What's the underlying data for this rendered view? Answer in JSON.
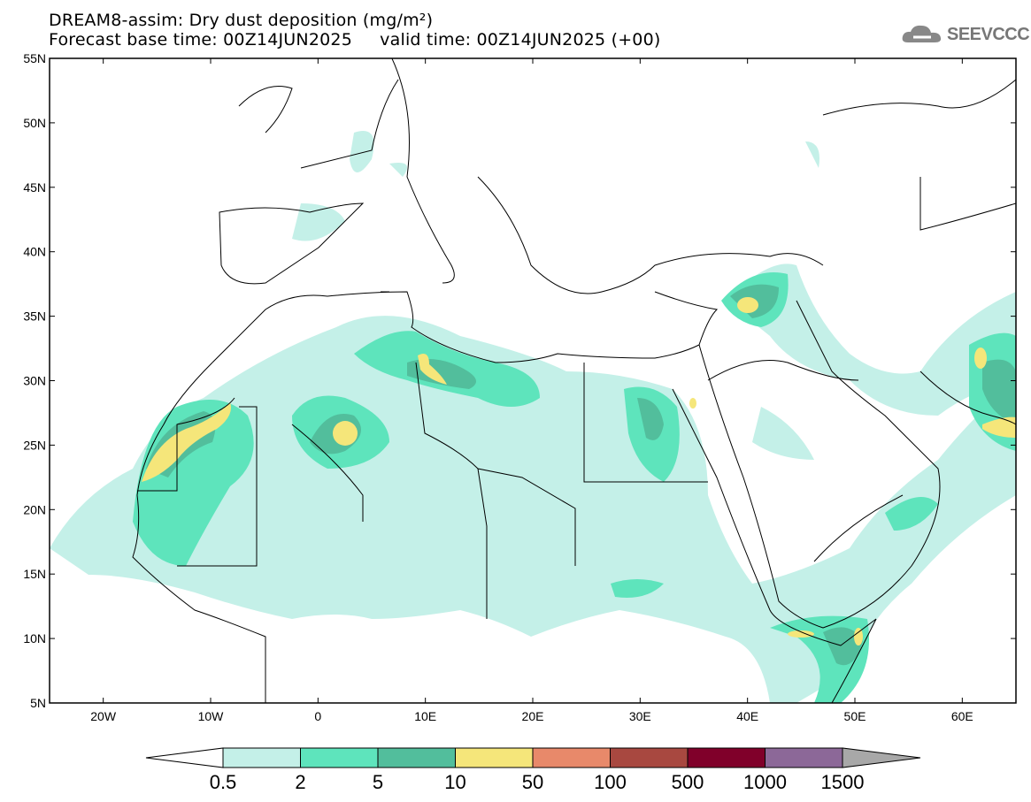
{
  "header": {
    "title": "DREAM8-assim: Dry dust deposition (mg/m²)",
    "subtitle": "Forecast base time: 00Z14JUN2025     valid time: 00Z14JUN2025 (+00)",
    "logo_text": "SEEVCCC"
  },
  "map": {
    "lat_labels": [
      "55N",
      "50N",
      "45N",
      "40N",
      "35N",
      "30N",
      "25N",
      "20N",
      "15N",
      "10N",
      "5N"
    ],
    "lat_values": [
      55,
      50,
      45,
      40,
      35,
      30,
      25,
      20,
      15,
      10,
      5
    ],
    "lon_labels": [
      "20W",
      "10W",
      "0",
      "10E",
      "20E",
      "30E",
      "40E",
      "50E",
      "60E"
    ],
    "lon_values": [
      -20,
      -10,
      0,
      10,
      20,
      30,
      40,
      50,
      60
    ],
    "lon_range": [
      -25,
      65
    ],
    "lat_range": [
      5,
      55
    ]
  },
  "colorbar": {
    "levels": [
      "0.5",
      "2",
      "5",
      "10",
      "50",
      "100",
      "500",
      "1000",
      "1500"
    ],
    "colors": [
      "#c4f0e8",
      "#5ee4bc",
      "#52be9c",
      "#f5e67a",
      "#e8896a",
      "#a84840",
      "#80002a",
      "#8c6898"
    ],
    "under_color": "#ffffff",
    "over_color": "#a8a8a8"
  }
}
